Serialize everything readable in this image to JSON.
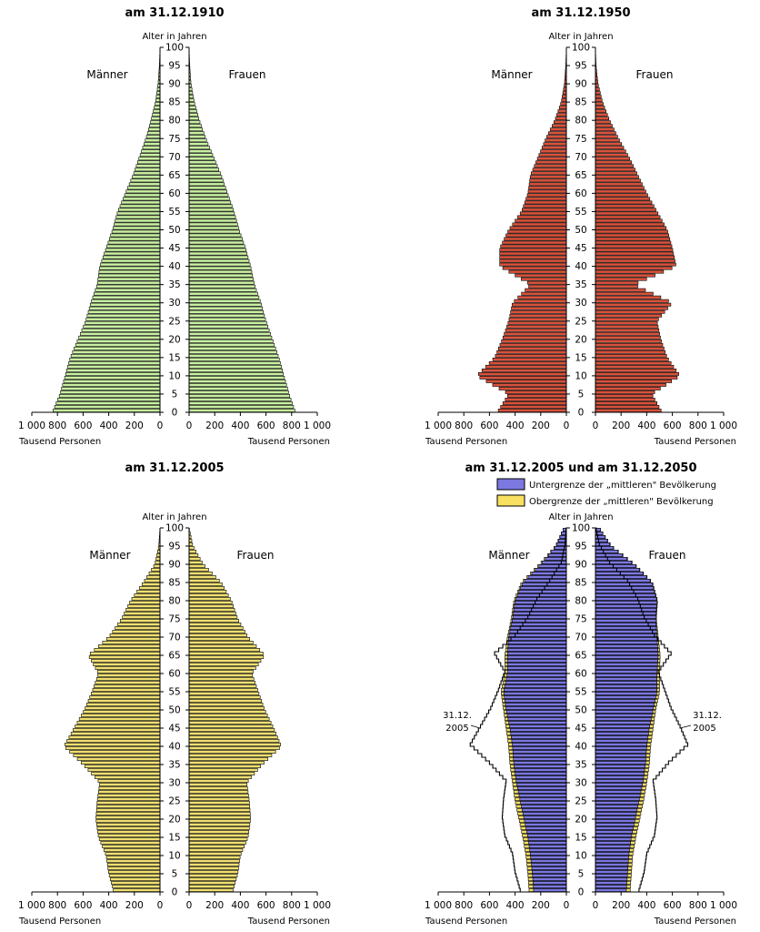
{
  "chart_data": [
    {
      "type": "bar",
      "title": "am 31.12.1910",
      "ylabel": "Alter in Jahren",
      "xlabel_left": "Tausend Personen",
      "xlabel_right": "Tausend Personen",
      "label_left": "Männer",
      "label_right": "Frauen",
      "xlim": [
        0,
        1000
      ],
      "ylim": [
        0,
        100
      ],
      "age_ticks": [
        0,
        5,
        10,
        15,
        20,
        25,
        30,
        35,
        40,
        45,
        50,
        55,
        60,
        65,
        70,
        75,
        80,
        85,
        90,
        95,
        100
      ],
      "x_ticks": [
        "1 000",
        "800",
        "600",
        "400",
        "200",
        "0"
      ],
      "x_ticks_right": [
        "0",
        "200",
        "400",
        "600",
        "800",
        "1 000"
      ],
      "fill_color": "#c8f0a0",
      "ages_step": 5,
      "men_values": [
        840,
        780,
        740,
        700,
        640,
        580,
        540,
        490,
        470,
        420,
        370,
        330,
        270,
        210,
        160,
        110,
        70,
        35,
        15,
        5,
        0
      ],
      "women_values": [
        830,
        780,
        740,
        700,
        650,
        600,
        560,
        510,
        480,
        440,
        390,
        350,
        300,
        250,
        190,
        130,
        80,
        40,
        15,
        5,
        0
      ]
    },
    {
      "type": "bar",
      "title": "am 31.12.1950",
      "ylabel": "Alter in Jahren",
      "xlabel_left": "Tausend Personen",
      "xlabel_right": "Tausend Personen",
      "label_left": "Männer",
      "label_right": "Frauen",
      "xlim": [
        0,
        1000
      ],
      "ylim": [
        0,
        100
      ],
      "age_ticks": [
        0,
        5,
        10,
        15,
        20,
        25,
        30,
        35,
        40,
        45,
        50,
        55,
        60,
        65,
        70,
        75,
        80,
        85,
        90,
        95,
        100
      ],
      "x_ticks": [
        "1 000",
        "800",
        "600",
        "400",
        "200",
        "0"
      ],
      "x_ticks_right": [
        "0",
        "200",
        "400",
        "600",
        "800",
        "1 000"
      ],
      "fill_color": "#d9523b",
      "ages_step": 5,
      "men_values": [
        540,
        450,
        700,
        560,
        500,
        450,
        420,
        280,
        520,
        520,
        450,
        350,
        300,
        280,
        220,
        160,
        90,
        40,
        15,
        5,
        0
      ],
      "women_values": [
        520,
        440,
        660,
        560,
        510,
        480,
        600,
        300,
        630,
        600,
        560,
        480,
        400,
        330,
        260,
        180,
        110,
        55,
        20,
        5,
        0
      ]
    },
    {
      "type": "bar",
      "title": "am 31.12.2005",
      "ylabel": "Alter in Jahren",
      "xlabel_left": "Tausend Personen",
      "xlabel_right": "Tausend Personen",
      "label_left": "Männer",
      "label_right": "Frauen",
      "xlim": [
        0,
        1000
      ],
      "ylim": [
        0,
        100
      ],
      "age_ticks": [
        0,
        5,
        10,
        15,
        20,
        25,
        30,
        35,
        40,
        45,
        50,
        55,
        60,
        65,
        70,
        75,
        80,
        85,
        90,
        95,
        100
      ],
      "x_ticks": [
        "1 000",
        "800",
        "600",
        "400",
        "200",
        "0"
      ],
      "x_ticks_right": [
        "0",
        "200",
        "400",
        "600",
        "800",
        "1 000"
      ],
      "fill_color": "#f0e070",
      "ages_step": 5,
      "men_values": [
        360,
        400,
        420,
        480,
        500,
        490,
        470,
        600,
        750,
        670,
        590,
        530,
        480,
        560,
        400,
        300,
        230,
        130,
        40,
        10,
        0
      ],
      "women_values": [
        340,
        380,
        400,
        460,
        480,
        470,
        450,
        570,
        720,
        660,
        590,
        540,
        490,
        590,
        460,
        380,
        330,
        250,
        110,
        30,
        0
      ]
    },
    {
      "type": "bar",
      "title": "am 31.12.2005 und am 31.12.2050",
      "ylabel": "Alter in Jahren",
      "xlabel_left": "Tausend Personen",
      "xlabel_right": "Tausend Personen",
      "label_left": "Männer",
      "label_right": "Frauen",
      "xlim": [
        0,
        1000
      ],
      "ylim": [
        0,
        100
      ],
      "age_ticks": [
        0,
        5,
        10,
        15,
        20,
        25,
        30,
        35,
        40,
        45,
        50,
        55,
        60,
        65,
        70,
        75,
        80,
        85,
        90,
        95,
        100
      ],
      "x_ticks": [
        "1 000",
        "800",
        "600",
        "400",
        "200",
        "0"
      ],
      "x_ticks_right": [
        "0",
        "200",
        "400",
        "600",
        "800",
        "1 000"
      ],
      "annotation": "31.12. 2005",
      "annotation_line1": "31.12.",
      "annotation_line2": "2005",
      "ages_step": 5,
      "series": [
        {
          "name": "Untergrenze der „mittleren\" Bevölkerung",
          "color": "#7b78e0",
          "men_values": [
            255,
            265,
            280,
            300,
            330,
            360,
            390,
            410,
            420,
            440,
            470,
            490,
            460,
            460,
            450,
            420,
            400,
            340,
            200,
            80,
            20
          ],
          "women_values": [
            240,
            250,
            260,
            280,
            310,
            340,
            370,
            390,
            400,
            420,
            450,
            480,
            480,
            490,
            480,
            470,
            480,
            440,
            300,
            120,
            30
          ]
        },
        {
          "name": "Obergrenze der „mittleren\" Bevölkerung",
          "color": "#f8e060",
          "men_values": [
            290,
            300,
            315,
            340,
            370,
            400,
            420,
            440,
            450,
            470,
            490,
            510,
            480,
            480,
            460,
            430,
            410,
            350,
            210,
            85,
            20
          ],
          "women_values": [
            270,
            280,
            290,
            315,
            345,
            375,
            400,
            420,
            430,
            450,
            470,
            500,
            500,
            505,
            490,
            475,
            485,
            445,
            305,
            125,
            30
          ]
        },
        {
          "name": "31.12.2005",
          "color": "#ffffff",
          "men_values": [
            360,
            400,
            420,
            480,
            500,
            490,
            470,
            600,
            750,
            670,
            590,
            530,
            480,
            560,
            400,
            300,
            230,
            130,
            40,
            10,
            0
          ],
          "women_values": [
            340,
            380,
            400,
            460,
            480,
            470,
            450,
            570,
            720,
            660,
            590,
            540,
            490,
            590,
            460,
            380,
            330,
            250,
            110,
            30,
            0
          ]
        }
      ]
    }
  ]
}
